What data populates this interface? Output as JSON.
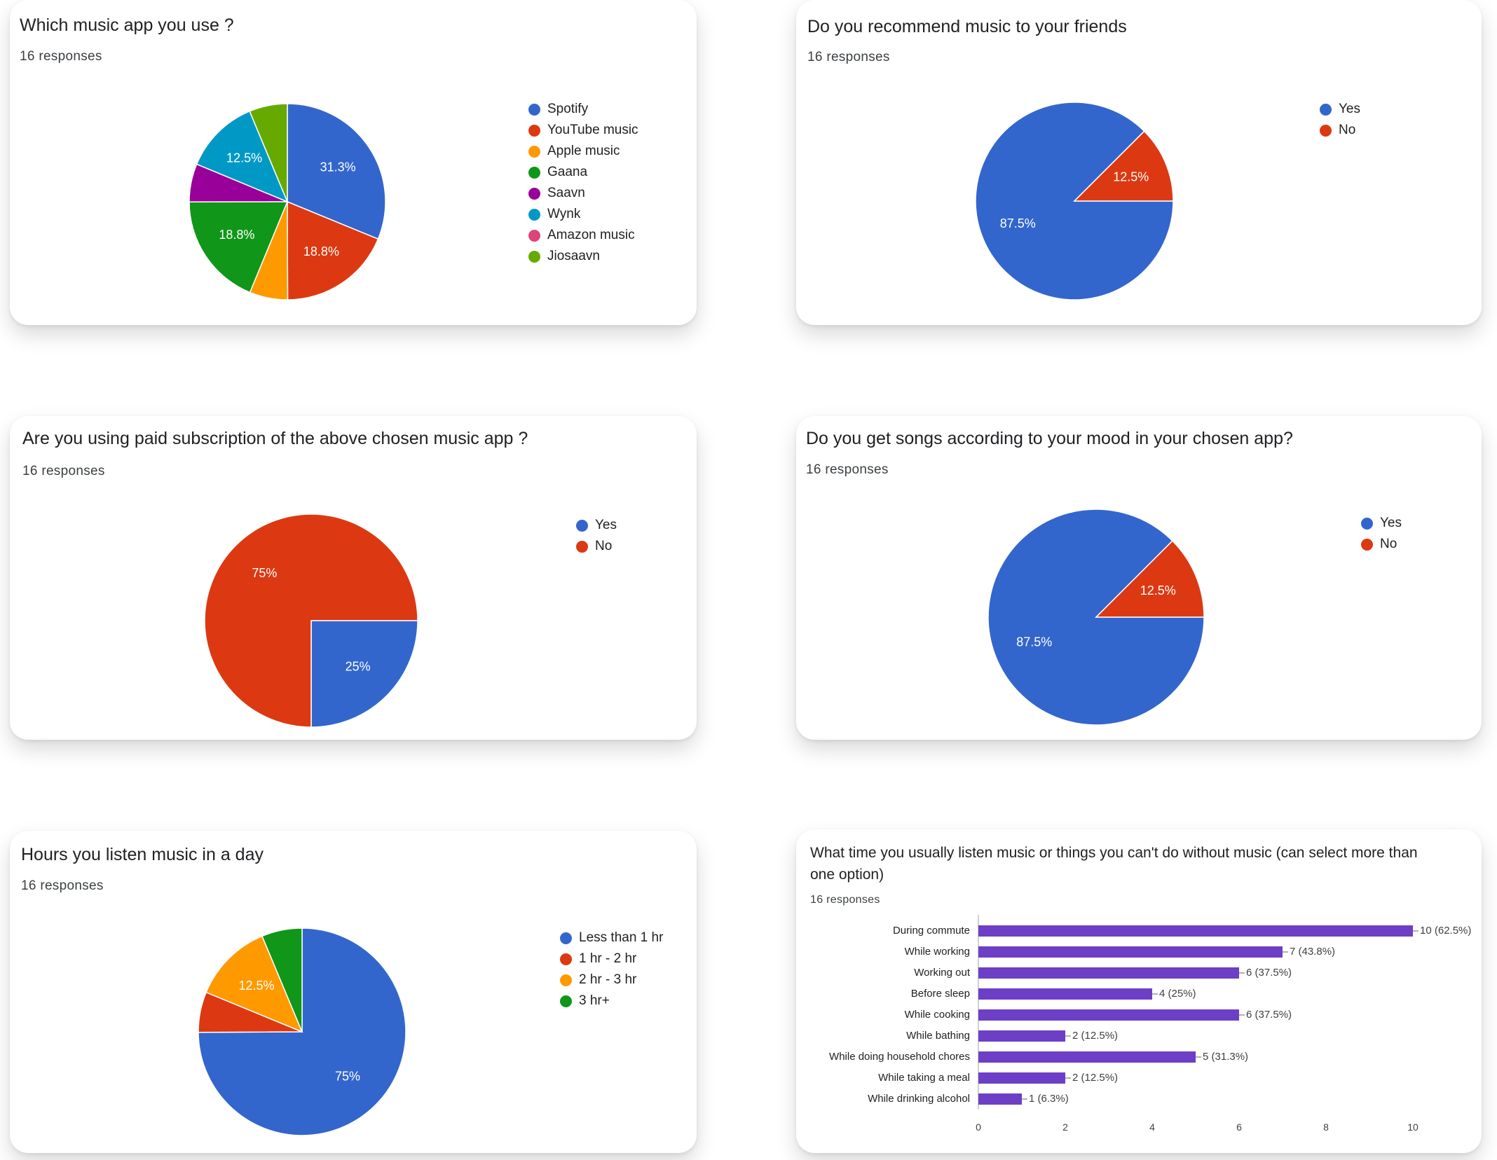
{
  "colors": {
    "blue": "#3366cc",
    "red": "#dc3912",
    "orange": "#ff9900",
    "green": "#109618",
    "purple": "#990099",
    "cyan": "#0099c6",
    "pink": "#dd4477",
    "lime": "#66aa00",
    "bar": "#6d3fc6"
  },
  "chart_data": [
    {
      "id": "card1",
      "type": "pie",
      "title": "Which music app you use ?",
      "subtitle": "16 responses",
      "legend_position": "right",
      "slices": [
        {
          "label": "Spotify",
          "value": 31.3,
          "display": "31.3%",
          "color": "#3366cc"
        },
        {
          "label": "YouTube music",
          "value": 18.8,
          "display": "18.8%",
          "color": "#dc3912"
        },
        {
          "label": "Apple music",
          "value": 6.3,
          "display": "",
          "color": "#ff9900"
        },
        {
          "label": "Gaana",
          "value": 18.8,
          "display": "18.8%",
          "color": "#109618"
        },
        {
          "label": "Saavn",
          "value": 6.3,
          "display": "",
          "color": "#990099"
        },
        {
          "label": "Wynk",
          "value": 12.5,
          "display": "12.5%",
          "color": "#0099c6"
        },
        {
          "label": "Amazon music",
          "value": 0,
          "display": "",
          "color": "#dd4477"
        },
        {
          "label": "Jiosaavn",
          "value": 6.3,
          "display": "",
          "color": "#66aa00"
        }
      ]
    },
    {
      "id": "card2",
      "type": "pie",
      "title": "Do you recommend music to your friends",
      "subtitle": "16 responses",
      "legend_position": "right",
      "slices": [
        {
          "label": "Yes",
          "value": 87.5,
          "display": "87.5%",
          "color": "#3366cc"
        },
        {
          "label": "No",
          "value": 12.5,
          "display": "12.5%",
          "color": "#dc3912"
        }
      ]
    },
    {
      "id": "card3",
      "type": "pie",
      "title": "Are you using paid subscription of the above chosen music app ?",
      "subtitle": "16 responses",
      "legend_position": "right",
      "slices": [
        {
          "label": "Yes",
          "value": 25,
          "display": "25%",
          "color": "#3366cc"
        },
        {
          "label": "No",
          "value": 75,
          "display": "75%",
          "color": "#dc3912"
        }
      ]
    },
    {
      "id": "card4",
      "type": "pie",
      "title": "Do you get songs according to your mood in your chosen app?",
      "subtitle": "16 responses",
      "legend_position": "right",
      "slices": [
        {
          "label": "Yes",
          "value": 87.5,
          "display": "87.5%",
          "color": "#3366cc"
        },
        {
          "label": "No",
          "value": 12.5,
          "display": "12.5%",
          "color": "#dc3912"
        }
      ]
    },
    {
      "id": "card5",
      "type": "pie",
      "title": "Hours you listen music in a day",
      "subtitle": "16 responses",
      "legend_position": "right",
      "slices": [
        {
          "label": "Less than 1 hr",
          "value": 75,
          "display": "75%",
          "color": "#3366cc"
        },
        {
          "label": "1 hr - 2 hr",
          "value": 6.3,
          "display": "",
          "color": "#dc3912"
        },
        {
          "label": "2 hr - 3 hr",
          "value": 12.5,
          "display": "12.5%",
          "color": "#ff9900"
        },
        {
          "label": "3 hr+",
          "value": 6.3,
          "display": "",
          "color": "#109618"
        }
      ]
    },
    {
      "id": "card6",
      "type": "bar",
      "orientation": "horizontal",
      "title": "What time you usually listen music or things you can't do without music (can select more than one option)",
      "subtitle": "16 responses",
      "categories": [
        "During commute",
        "While working",
        "Working out",
        "Before sleep",
        "While cooking",
        "While bathing",
        "While doing household chores",
        "While taking a meal",
        "While drinking alcohol"
      ],
      "values": [
        10,
        7,
        6,
        4,
        6,
        2,
        5,
        2,
        1
      ],
      "value_labels": [
        "10 (62.5%)",
        "7 (43.8%)",
        "6 (37.5%)",
        "4 (25%)",
        "6 (37.5%)",
        "2 (12.5%)",
        "5 (31.3%)",
        "2 (12.5%)",
        "1 (6.3%)"
      ],
      "xlim": [
        0,
        10
      ],
      "xticks": [
        "0",
        "2",
        "4",
        "6",
        "8",
        "10"
      ],
      "color": "#6d3fc6"
    }
  ]
}
